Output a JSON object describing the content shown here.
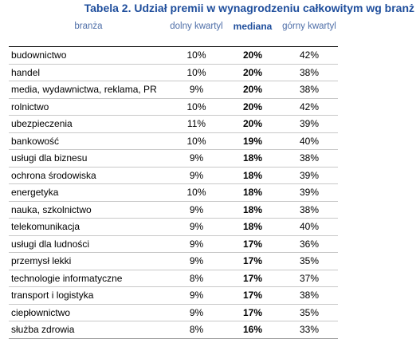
{
  "title": "Tabela 2. Udział premii w wynagrodzeniu całkowitym wg branż",
  "headers": {
    "branza": "branża",
    "dolny": "dolny kwartyl",
    "mediana": "mediana",
    "gorny": "górny kwartyl"
  },
  "rows": [
    {
      "branza": "budownictwo",
      "dolny": "10%",
      "mediana": "20%",
      "gorny": "42%"
    },
    {
      "branza": "handel",
      "dolny": "10%",
      "mediana": "20%",
      "gorny": "38%"
    },
    {
      "branza": "media, wydawnictwa, reklama, PR",
      "dolny": "9%",
      "mediana": "20%",
      "gorny": "38%"
    },
    {
      "branza": "rolnictwo",
      "dolny": "10%",
      "mediana": "20%",
      "gorny": "42%"
    },
    {
      "branza": "ubezpieczenia",
      "dolny": "11%",
      "mediana": "20%",
      "gorny": "39%"
    },
    {
      "branza": "bankowość",
      "dolny": "10%",
      "mediana": "19%",
      "gorny": "40%"
    },
    {
      "branza": "usługi dla biznesu",
      "dolny": "9%",
      "mediana": "18%",
      "gorny": "38%"
    },
    {
      "branza": "ochrona środowiska",
      "dolny": "9%",
      "mediana": "18%",
      "gorny": "39%"
    },
    {
      "branza": "energetyka",
      "dolny": "10%",
      "mediana": "18%",
      "gorny": "39%"
    },
    {
      "branza": "nauka, szkolnictwo",
      "dolny": "9%",
      "mediana": "18%",
      "gorny": "38%"
    },
    {
      "branza": "telekomunikacja",
      "dolny": "9%",
      "mediana": "18%",
      "gorny": "40%"
    },
    {
      "branza": "usługi dla ludności",
      "dolny": "9%",
      "mediana": "17%",
      "gorny": "36%"
    },
    {
      "branza": "przemysł lekki",
      "dolny": "9%",
      "mediana": "17%",
      "gorny": "35%"
    },
    {
      "branza": "technologie informatyczne",
      "dolny": "8%",
      "mediana": "17%",
      "gorny": "37%"
    },
    {
      "branza": "transport i logistyka",
      "dolny": "9%",
      "mediana": "17%",
      "gorny": "38%"
    },
    {
      "branza": "ciepłownictwo",
      "dolny": "9%",
      "mediana": "17%",
      "gorny": "35%"
    },
    {
      "branza": "służba zdrowia",
      "dolny": "8%",
      "mediana": "16%",
      "gorny": "33%"
    }
  ]
}
